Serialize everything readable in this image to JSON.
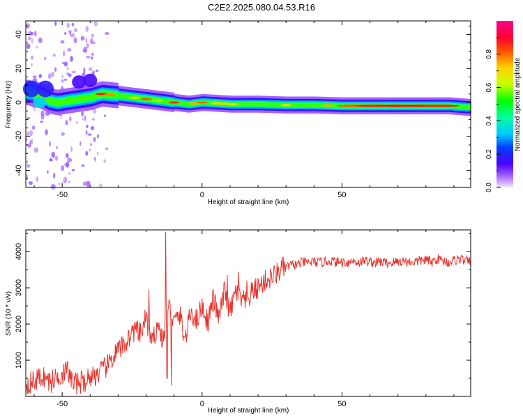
{
  "title": "C2E2.2025.080.04.53.R16",
  "chart_data": [
    {
      "type": "heatmap",
      "xlabel": "Height of straight line (km)",
      "ylabel": "Frequency (Hz)",
      "xlim": [
        -63,
        96
      ],
      "ylim": [
        -50,
        48
      ],
      "x_ticks": [
        -50,
        0,
        50
      ],
      "y_ticks": [
        -40,
        -20,
        0,
        20,
        40
      ],
      "colorbar": {
        "label": "Normalized spectral amplitude",
        "range": [
          0,
          1
        ],
        "ticks": [
          0.0,
          0.2,
          0.4,
          0.6,
          0.8
        ]
      },
      "ridge": {
        "x": [
          -63,
          -58,
          -55,
          -52,
          -48,
          -44,
          -40,
          -36,
          -30,
          -25,
          -20,
          -15,
          -10,
          -5,
          0,
          10,
          20,
          30,
          40,
          50,
          60,
          70,
          80,
          88,
          96
        ],
        "y": [
          6,
          4,
          1,
          0,
          1,
          2,
          3,
          5,
          4,
          3,
          2,
          1,
          0,
          -1,
          0,
          -1,
          -1,
          -1.5,
          -1.5,
          -2,
          -2,
          -2,
          -2,
          -2,
          -3
        ]
      }
    },
    {
      "type": "line",
      "xlabel": "Height of straight line (km)",
      "ylabel": "SNR (10 * v/v)",
      "xlim": [
        -63,
        96
      ],
      "ylim": [
        0,
        4600
      ],
      "x_ticks": [
        -50,
        0,
        50
      ],
      "y_ticks": [
        1000,
        2000,
        3000,
        4000
      ],
      "color": "#e8322c",
      "series": [
        {
          "x": [
            -63,
            -60,
            -57,
            -54,
            -51,
            -48,
            -46,
            -44,
            -42,
            -40,
            -38,
            -36,
            -34,
            -32,
            -30,
            -28,
            -26,
            -24,
            -22,
            -20,
            -18,
            -16,
            -14,
            -12,
            -10,
            -8,
            -6,
            -4,
            -2,
            0,
            2,
            4,
            6,
            8,
            10,
            12,
            14,
            16,
            18,
            20,
            22,
            24,
            26,
            28,
            30,
            32,
            34,
            36,
            38,
            40,
            42,
            44,
            46,
            48,
            50,
            52,
            54,
            56,
            58,
            60,
            62,
            64,
            66,
            68,
            70,
            72,
            74,
            76,
            78,
            80,
            82,
            84,
            86,
            88,
            90,
            92,
            94,
            96
          ],
          "y": [
            350,
            420,
            560,
            380,
            600,
            700,
            350,
            380,
            420,
            550,
            600,
            680,
            820,
            1080,
            1250,
            1400,
            1650,
            1850,
            1700,
            2200,
            1400,
            2000,
            1550,
            2500,
            2050,
            2250,
            1550,
            2350,
            2100,
            2500,
            2050,
            2700,
            2150,
            2900,
            2300,
            2900,
            2650,
            2600,
            2900,
            3000,
            3150,
            3250,
            3350,
            3500,
            3580,
            3620,
            3650,
            3700,
            3700,
            3720,
            3700,
            3720,
            3750,
            3700,
            3720,
            3700,
            3740,
            3700,
            3750,
            3720,
            3700,
            3720,
            3680,
            3700,
            3720,
            3750,
            3700,
            3720,
            3750,
            3780,
            3700,
            3800,
            3750,
            3700,
            3760,
            3800,
            3750,
            3700
          ]
        }
      ]
    }
  ]
}
